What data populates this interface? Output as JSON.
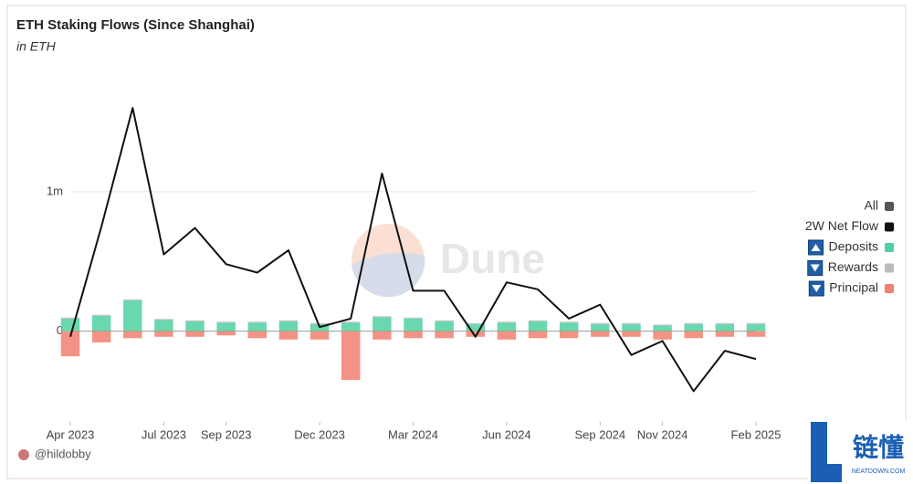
{
  "chart_data": {
    "type": "bar-line",
    "title": "ETH Staking Flows (Since Shanghai)",
    "subtitle": "in ETH",
    "author": "@hildobby",
    "watermark": "Dune",
    "legend_all": "All",
    "x": [
      "2023-04",
      "2023-05",
      "2023-06",
      "2023-07",
      "2023-08",
      "2023-09",
      "2023-10",
      "2023-11",
      "2023-12",
      "2024-01",
      "2024-02",
      "2024-03",
      "2024-04",
      "2024-05",
      "2024-06",
      "2024-07",
      "2024-08",
      "2024-09",
      "2024-10",
      "2024-11",
      "2024-12",
      "2025-01",
      "2025-02"
    ],
    "series": [
      {
        "name": "2W Net Flow",
        "kind": "line",
        "color": "#111111",
        "values": [
          -40000,
          750000,
          1600000,
          550000,
          740000,
          480000,
          420000,
          580000,
          30000,
          90000,
          1130000,
          290000,
          290000,
          -40000,
          350000,
          300000,
          90000,
          190000,
          -170000,
          -70000,
          -430000,
          -140000,
          -200000
        ]
      },
      {
        "name": "Deposits",
        "kind": "bar",
        "color": "#4fd1a0",
        "values": [
          90000,
          110000,
          220000,
          80000,
          70000,
          60000,
          60000,
          70000,
          50000,
          60000,
          100000,
          90000,
          70000,
          50000,
          60000,
          70000,
          60000,
          50000,
          50000,
          40000,
          50000,
          50000,
          50000
        ]
      },
      {
        "name": "Rewards",
        "kind": "bar",
        "color": "#bbbbbb",
        "values": [
          8000,
          8000,
          8000,
          8000,
          8000,
          8000,
          8000,
          8000,
          8000,
          8000,
          8000,
          8000,
          8000,
          8000,
          8000,
          8000,
          8000,
          8000,
          8000,
          8000,
          8000,
          8000,
          8000
        ]
      },
      {
        "name": "Principal",
        "kind": "bar",
        "color": "#f08070",
        "values": [
          -180000,
          -80000,
          -50000,
          -40000,
          -40000,
          -30000,
          -50000,
          -60000,
          -60000,
          -350000,
          -60000,
          -50000,
          -50000,
          -40000,
          -60000,
          -50000,
          -50000,
          -40000,
          -40000,
          -60000,
          -50000,
          -40000,
          -40000
        ]
      }
    ],
    "xlim": [
      "2023-04",
      "2025-02"
    ],
    "xticks": [
      {
        "value": "2023-04",
        "label": "Apr 2023"
      },
      {
        "value": "2023-07",
        "label": "Jul 2023"
      },
      {
        "value": "2023-09",
        "label": "Sep 2023"
      },
      {
        "value": "2023-12",
        "label": "Dec 2023"
      },
      {
        "value": "2024-03",
        "label": "Mar 2024"
      },
      {
        "value": "2024-06",
        "label": "Jun 2024"
      },
      {
        "value": "2024-09",
        "label": "Sep 2024"
      },
      {
        "value": "2024-11",
        "label": "Nov 2024"
      },
      {
        "value": "2025-02",
        "label": "Feb 2025"
      }
    ],
    "ylim": [
      -650000,
      1850000
    ],
    "yticks": [
      0,
      {
        "value": 1000000,
        "label": "1m"
      }
    ],
    "grid": true,
    "legend_position": "right",
    "logo": {
      "text": "链懂",
      "subtext": "NEATDOWN.COM"
    }
  }
}
